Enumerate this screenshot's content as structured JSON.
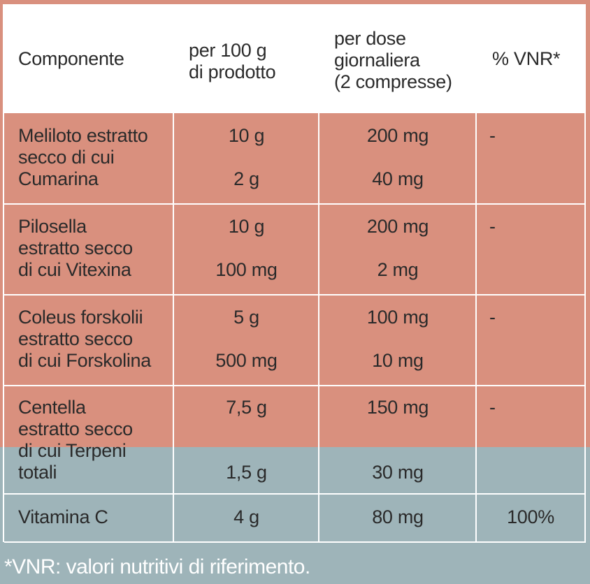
{
  "colors": {
    "header": "#ffffff",
    "herbal_rows": "#d9907e",
    "vitamin_rows": "#9eb4b9",
    "grid": "#ffffff",
    "text": "#2a2a2a"
  },
  "header": {
    "col1": "Componente",
    "col2": "per 100 g\ndi prodotto",
    "col3": "per dose\ngiornaliera\n(2 compresse)",
    "col4": "% VNR*"
  },
  "rows": [
    {
      "name": "Meliloto estratto\nsecco di cui\nCumarina",
      "per100_a": "10 g",
      "per100_b": "2 g",
      "dose_a": "200 mg",
      "dose_b": "40 mg",
      "vnr": "-"
    },
    {
      "name": "Pilosella\nestratto secco\ndi cui Vitexina",
      "per100_a": "10 g",
      "per100_b": "100 mg",
      "dose_a": "200 mg",
      "dose_b": "2 mg",
      "vnr": "-"
    },
    {
      "name": "Coleus forskolii\nestratto secco\ndi cui Forskolina",
      "per100_a": "5 g",
      "per100_b": "500 mg",
      "dose_a": "100 mg",
      "dose_b": "10 mg",
      "vnr": "-"
    },
    {
      "name": "Centella\nestratto secco\ndi cui Terpeni\ntotali",
      "per100_a": "7,5 g",
      "per100_b": "1,5 g",
      "dose_a": "150 mg",
      "dose_b": "30 mg",
      "vnr": "-"
    },
    {
      "name": "Vitamina C",
      "per100": "4 g",
      "dose": "80 mg",
      "vnr": "100%"
    }
  ],
  "footnote": "*VNR: valori nutritivi di riferimento."
}
